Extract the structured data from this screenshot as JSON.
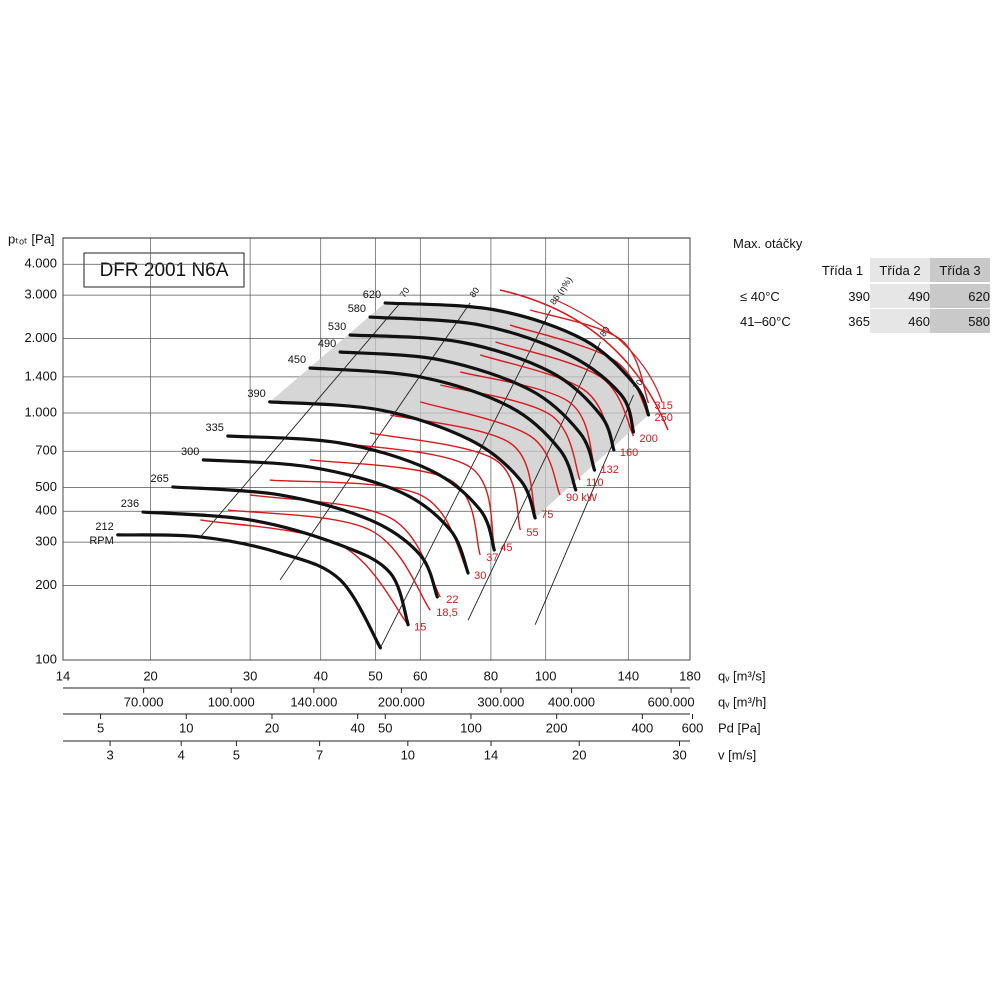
{
  "chart_data": {
    "type": "fan",
    "title": "DFR 2001 N6A",
    "ylabel": "pₜₒₜ [Pa]",
    "xlabel": "qᵥ [m³/s]",
    "log_scale": true,
    "grid": true,
    "ylim": [
      100,
      5110
    ],
    "yticks": [
      100,
      200,
      300,
      400,
      500,
      700,
      {
        "value": 1000,
        "label": "1.000"
      },
      {
        "value": 1400,
        "label": "1.400"
      },
      {
        "value": 2000,
        "label": "2.000"
      },
      {
        "value": 3000,
        "label": "3.000"
      },
      {
        "value": 4000,
        "label": "4.000"
      }
    ],
    "xlim": [
      14,
      180
    ],
    "xticks": [
      14,
      20,
      30,
      40,
      50,
      60,
      80,
      100,
      140,
      180
    ],
    "secondary_axes": [
      {
        "label": "qᵥ [m³/h]",
        "lim": [
          50400,
          648000
        ],
        "ticks": [
          {
            "value": 70000,
            "label": "70.000"
          },
          {
            "value": 100000,
            "label": "100.000"
          },
          {
            "value": 140000,
            "label": "140.000"
          },
          {
            "value": 200000,
            "label": "200.000"
          },
          {
            "value": 300000,
            "label": "300.000"
          },
          {
            "value": 400000,
            "label": "400.000"
          },
          {
            "value": 600000,
            "label": "600.000"
          }
        ]
      },
      {
        "label": "Pd [Pa]",
        "lim": [
          3.69,
          588
        ],
        "ticks": [
          5,
          10,
          20,
          40,
          50,
          100,
          200,
          400,
          600
        ]
      },
      {
        "label": "v [m/s]",
        "lim": [
          2.48,
          31.3
        ],
        "ticks": [
          3,
          4,
          5,
          7,
          10,
          14,
          20,
          30
        ]
      }
    ],
    "rpm_curves": {
      "unit": "RPM",
      "color": "#111111",
      "series": [
        {
          "name": "212",
          "x": [
            17.5,
            24.5,
            33.9,
            43.3,
            51.0
          ],
          "values": [
            321,
            315,
            271,
            211,
            112
          ]
        },
        {
          "name": "236",
          "x": [
            19.4,
            30.0,
            43.3,
            53.1,
            57.1
          ],
          "values": [
            397,
            369,
            292,
            225,
            139
          ]
        },
        {
          "name": "265",
          "x": [
            21.9,
            33.9,
            48.9,
            60.0,
            64.3
          ],
          "values": [
            502,
            466,
            369,
            266,
            180
          ]
        },
        {
          "name": "300",
          "x": [
            24.8,
            38.3,
            55.3,
            67.8,
            72.9
          ],
          "values": [
            646,
            604,
            479,
            336,
            225
          ]
        },
        {
          "name": "335",
          "x": [
            27.4,
            43.3,
            62.5,
            76.6,
            81.1
          ],
          "values": [
            807,
            756,
            587,
            405,
            279
          ]
        },
        {
          "name": "390",
          "x": [
            32.5,
            51.0,
            73.5,
            90.2,
            95.8
          ],
          "values": [
            1109,
            1028,
            778,
            535,
            376
          ]
        },
        {
          "name": "450",
          "x": [
            38.3,
            60.0,
            86.5,
            106,
            113
          ],
          "values": [
            1521,
            1400,
            1058,
            708,
            488
          ]
        },
        {
          "name": "490",
          "x": [
            43.3,
            65.1,
            93.9,
            115,
            122
          ],
          "values": [
            1766,
            1640,
            1239,
            830,
            587
          ]
        },
        {
          "name": "530",
          "x": [
            45.1,
            70.6,
            102,
            125,
            132
          ],
          "values": [
            2069,
            1938,
            1466,
            982,
            708
          ]
        },
        {
          "name": "580",
          "x": [
            48.9,
            76.6,
            110,
            136,
            143
          ],
          "values": [
            2446,
            2270,
            1718,
            1183,
            838
          ]
        },
        {
          "name": "620",
          "x": [
            52.0,
            81.5,
            117,
            144,
            152
          ],
          "values": [
            2790,
            2612,
            1976,
            1298,
            982
          ]
        }
      ]
    },
    "power_curves": {
      "color": "#d7191c",
      "series": [
        {
          "name": "15",
          "x": [
            24.5,
            43.3,
            57.1
          ],
          "values": [
            369,
            292,
            139
          ]
        },
        {
          "name": "18,5",
          "x": [
            27.4,
            48.9,
            62.5
          ],
          "values": [
            405,
            336,
            159
          ]
        },
        {
          "name": "22",
          "x": [
            30.0,
            53.1,
            65.1
          ],
          "values": [
            466,
            376,
            180
          ]
        },
        {
          "name": "30",
          "x": [
            32.5,
            60.0,
            72.9
          ],
          "values": [
            535,
            466,
            225
          ]
        },
        {
          "name": "37",
          "x": [
            38.3,
            67.8,
            76.6
          ],
          "values": [
            646,
            535,
            266
          ]
        },
        {
          "name": "45",
          "x": [
            43.3,
            73.5,
            81.1
          ],
          "values": [
            756,
            604,
            292
          ]
        },
        {
          "name": "55",
          "x": [
            48.9,
            81.5,
            90.2
          ],
          "values": [
            830,
            646,
            336
          ]
        },
        {
          "name": "75",
          "x": [
            53.1,
            86.5,
            95.8
          ],
          "values": [
            982,
            756,
            397
          ]
        },
        {
          "name": "90 kW",
          "x": [
            60.0,
            93.9,
            106
          ],
          "values": [
            1109,
            807,
            466
          ]
        },
        {
          "name": "110",
          "x": [
            65.1,
            102,
            115
          ],
          "values": [
            1298,
            982,
            535
          ]
        },
        {
          "name": "132",
          "x": [
            70.6,
            110,
            122
          ],
          "values": [
            1466,
            1109,
            604
          ]
        },
        {
          "name": "160",
          "x": [
            76.6,
            117,
            132
          ],
          "values": [
            1718,
            1239,
            708
          ]
        },
        {
          "name": "200",
          "x": [
            81.5,
            125,
            143
          ],
          "values": [
            1938,
            1400,
            807
          ]
        },
        {
          "name": "250",
          "x": [
            86.5,
            132,
            152
          ],
          "values": [
            2270,
            1640,
            982
          ]
        },
        {
          "name": "315",
          "x": [
            93.9,
            136,
            152
          ],
          "values": [
            2612,
            1976,
            1097
          ]
        }
      ]
    },
    "efficiency_lines": {
      "color": "#222222",
      "series": [
        {
          "name": "70",
          "x": [
            24.5,
            55.3
          ],
          "values": [
            315,
            2790
          ]
        },
        {
          "name": "80",
          "x": [
            33.9,
            73.5
          ],
          "values": [
            211,
            2790
          ]
        },
        {
          "name": "86 (η%)",
          "x": [
            51.0,
            102
          ],
          "values": [
            112,
            2612
          ]
        },
        {
          "name": "80",
          "x": [
            72.9,
            125
          ],
          "values": [
            145,
            1938
          ]
        },
        {
          "name": "70",
          "x": [
            95.8,
            143
          ],
          "values": [
            139,
            1183
          ]
        }
      ]
    }
  },
  "speed_table": {
    "title": "Max. otáčky",
    "header": [
      "Třída 1",
      "Třída 2",
      "Třída 3"
    ],
    "rows": [
      {
        "label": "≤ 40°C",
        "values": [
          "390",
          "490",
          "620"
        ]
      },
      {
        "label": "41–60°C",
        "values": [
          "365",
          "460",
          "580"
        ]
      }
    ]
  }
}
